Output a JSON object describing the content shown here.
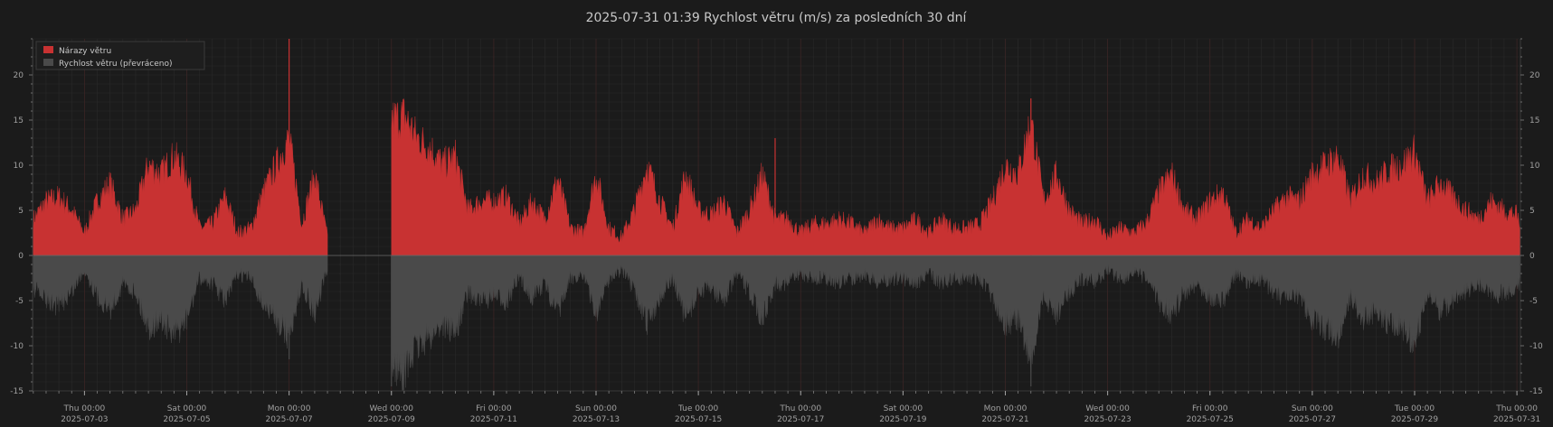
{
  "title": "2025-07-31  01:39  Rychlost větru (m/s) za posledních 30 dní",
  "colors": {
    "background": "#1b1b1b",
    "plot_background": "#1b1b1b",
    "gusts": "#c83232",
    "speed": "#4a4a4a",
    "grid_minor": "#2a2a2a",
    "grid_major_x": "#3a2424",
    "text": "#a0a0a0"
  },
  "chart_data": {
    "type": "area",
    "title": "2025-07-31  01:39  Rychlost větru (m/s) za posledních 30 dní",
    "xlabel": "",
    "ylabel": "",
    "x_range": [
      "2025-07-01T23:39",
      "2025-07-31T01:39"
    ],
    "ylim": [
      -15,
      24
    ],
    "y_ticks": [
      -15,
      -10,
      -5,
      0,
      5,
      10,
      15,
      20
    ],
    "x_ticks": [
      {
        "x": "2025-07-03T00:00",
        "day": "Thu 00:00",
        "date": "2025-07-03"
      },
      {
        "x": "2025-07-05T00:00",
        "day": "Sat 00:00",
        "date": "2025-07-05"
      },
      {
        "x": "2025-07-07T00:00",
        "day": "Mon 00:00",
        "date": "2025-07-07"
      },
      {
        "x": "2025-07-09T00:00",
        "day": "Wed 00:00",
        "date": "2025-07-09"
      },
      {
        "x": "2025-07-11T00:00",
        "day": "Fri 00:00",
        "date": "2025-07-11"
      },
      {
        "x": "2025-07-13T00:00",
        "day": "Sun 00:00",
        "date": "2025-07-13"
      },
      {
        "x": "2025-07-15T00:00",
        "day": "Tue 00:00",
        "date": "2025-07-15"
      },
      {
        "x": "2025-07-17T00:00",
        "day": "Thu 00:00",
        "date": "2025-07-17"
      },
      {
        "x": "2025-07-19T00:00",
        "day": "Sat 00:00",
        "date": "2025-07-19"
      },
      {
        "x": "2025-07-21T00:00",
        "day": "Mon 00:00",
        "date": "2025-07-21"
      },
      {
        "x": "2025-07-23T00:00",
        "day": "Wed 00:00",
        "date": "2025-07-23"
      },
      {
        "x": "2025-07-25T00:00",
        "day": "Fri 00:00",
        "date": "2025-07-25"
      },
      {
        "x": "2025-07-27T00:00",
        "day": "Sun 00:00",
        "date": "2025-07-27"
      },
      {
        "x": "2025-07-29T00:00",
        "day": "Tue 00:00",
        "date": "2025-07-29"
      },
      {
        "x": "2025-07-31T00:00",
        "day": "Thu 00:00",
        "date": "2025-07-31"
      }
    ],
    "grid": true,
    "legend_position": "top-left",
    "series": [
      {
        "name": "Nárazy větru",
        "color": "#c83232",
        "direction": "up",
        "data": [
          [
            "2025-07-02T00:00",
            4
          ],
          [
            "2025-07-02T06:00",
            6
          ],
          [
            "2025-07-02T12:00",
            6.5
          ],
          [
            "2025-07-02T18:00",
            5
          ],
          [
            "2025-07-03T00:00",
            2.5
          ],
          [
            "2025-07-03T06:00",
            6
          ],
          [
            "2025-07-03T12:00",
            8
          ],
          [
            "2025-07-03T18:00",
            4
          ],
          [
            "2025-07-04T00:00",
            5
          ],
          [
            "2025-07-04T06:00",
            10
          ],
          [
            "2025-07-04T12:00",
            9
          ],
          [
            "2025-07-04T18:00",
            11
          ],
          [
            "2025-07-05T00:00",
            9
          ],
          [
            "2025-07-05T06:00",
            3
          ],
          [
            "2025-07-05T12:00",
            3.5
          ],
          [
            "2025-07-05T18:00",
            6.5
          ],
          [
            "2025-07-06T00:00",
            2.5
          ],
          [
            "2025-07-06T06:00",
            3
          ],
          [
            "2025-07-06T12:00",
            7
          ],
          [
            "2025-07-06T18:00",
            10
          ],
          [
            "2025-07-07T00:00",
            13
          ],
          [
            "2025-07-07T06:00",
            3.5
          ],
          [
            "2025-07-07T12:00",
            9
          ],
          [
            "2025-07-07T18:00",
            2
          ],
          [
            "2025-07-09T00:00",
            15
          ],
          [
            "2025-07-09T06:00",
            15.5
          ],
          [
            "2025-07-09T12:00",
            13
          ],
          [
            "2025-07-09T18:00",
            12
          ],
          [
            "2025-07-10T00:00",
            10
          ],
          [
            "2025-07-10T06:00",
            11
          ],
          [
            "2025-07-10T12:00",
            5
          ],
          [
            "2025-07-10T18:00",
            6
          ],
          [
            "2025-07-11T00:00",
            6
          ],
          [
            "2025-07-11T06:00",
            6.5
          ],
          [
            "2025-07-11T12:00",
            3.5
          ],
          [
            "2025-07-11T18:00",
            6
          ],
          [
            "2025-07-12T00:00",
            4
          ],
          [
            "2025-07-12T06:00",
            8.5
          ],
          [
            "2025-07-12T12:00",
            3
          ],
          [
            "2025-07-12T18:00",
            2.5
          ],
          [
            "2025-07-13T00:00",
            9
          ],
          [
            "2025-07-13T06:00",
            3
          ],
          [
            "2025-07-13T12:00",
            2
          ],
          [
            "2025-07-13T18:00",
            5
          ],
          [
            "2025-07-14T00:00",
            10
          ],
          [
            "2025-07-14T06:00",
            6
          ],
          [
            "2025-07-14T12:00",
            3
          ],
          [
            "2025-07-14T18:00",
            9
          ],
          [
            "2025-07-15T00:00",
            5
          ],
          [
            "2025-07-15T06:00",
            4.5
          ],
          [
            "2025-07-15T12:00",
            6
          ],
          [
            "2025-07-15T18:00",
            2.5
          ],
          [
            "2025-07-16T00:00",
            5
          ],
          [
            "2025-07-16T06:00",
            9
          ],
          [
            "2025-07-16T12:00",
            4
          ],
          [
            "2025-07-16T18:00",
            4
          ],
          [
            "2025-07-17T00:00",
            2.5
          ],
          [
            "2025-07-17T06:00",
            3.5
          ],
          [
            "2025-07-17T12:00",
            3.5
          ],
          [
            "2025-07-17T18:00",
            4
          ],
          [
            "2025-07-18T00:00",
            3.5
          ],
          [
            "2025-07-18T06:00",
            2.5
          ],
          [
            "2025-07-18T12:00",
            4
          ],
          [
            "2025-07-18T18:00",
            3
          ],
          [
            "2025-07-19T00:00",
            3
          ],
          [
            "2025-07-19T06:00",
            4
          ],
          [
            "2025-07-19T12:00",
            2.5
          ],
          [
            "2025-07-19T18:00",
            4
          ],
          [
            "2025-07-20T00:00",
            3
          ],
          [
            "2025-07-20T06:00",
            3
          ],
          [
            "2025-07-20T12:00",
            3.5
          ],
          [
            "2025-07-20T18:00",
            6
          ],
          [
            "2025-07-21T00:00",
            10
          ],
          [
            "2025-07-21T06:00",
            9
          ],
          [
            "2025-07-21T12:00",
            15
          ],
          [
            "2025-07-21T18:00",
            6
          ],
          [
            "2025-07-22T00:00",
            9
          ],
          [
            "2025-07-22T06:00",
            5
          ],
          [
            "2025-07-22T12:00",
            3.5
          ],
          [
            "2025-07-22T18:00",
            4
          ],
          [
            "2025-07-23T00:00",
            2
          ],
          [
            "2025-07-23T06:00",
            3
          ],
          [
            "2025-07-23T12:00",
            2.5
          ],
          [
            "2025-07-23T18:00",
            3.5
          ],
          [
            "2025-07-24T00:00",
            7
          ],
          [
            "2025-07-24T06:00",
            9
          ],
          [
            "2025-07-24T12:00",
            5
          ],
          [
            "2025-07-24T18:00",
            4
          ],
          [
            "2025-07-25T00:00",
            6
          ],
          [
            "2025-07-25T06:00",
            7
          ],
          [
            "2025-07-25T12:00",
            2.5
          ],
          [
            "2025-07-25T18:00",
            4
          ],
          [
            "2025-07-26T00:00",
            3
          ],
          [
            "2025-07-26T06:00",
            5
          ],
          [
            "2025-07-26T12:00",
            6.5
          ],
          [
            "2025-07-26T18:00",
            6
          ],
          [
            "2025-07-27T00:00",
            9
          ],
          [
            "2025-07-27T06:00",
            10
          ],
          [
            "2025-07-27T12:00",
            11
          ],
          [
            "2025-07-27T18:00",
            6
          ],
          [
            "2025-07-28T00:00",
            9
          ],
          [
            "2025-07-28T06:00",
            8
          ],
          [
            "2025-07-28T12:00",
            9.5
          ],
          [
            "2025-07-28T18:00",
            10
          ],
          [
            "2025-07-29T00:00",
            11.5
          ],
          [
            "2025-07-29T06:00",
            6
          ],
          [
            "2025-07-29T12:00",
            8
          ],
          [
            "2025-07-29T18:00",
            6.5
          ],
          [
            "2025-07-30T00:00",
            5
          ],
          [
            "2025-07-30T06:00",
            4
          ],
          [
            "2025-07-30T12:00",
            6
          ],
          [
            "2025-07-30T18:00",
            5
          ],
          [
            "2025-07-31T00:00",
            4.5
          ],
          [
            "2025-07-31T01:39",
            3
          ]
        ],
        "spikes": [
          [
            "2025-07-07T00:00",
            24
          ],
          [
            "2025-07-21T12:00",
            17.4
          ],
          [
            "2025-07-16T12:00",
            13
          ]
        ]
      },
      {
        "name": "Rychlost větru (převráceno)",
        "color": "#4a4a4a",
        "direction": "down",
        "data": [
          [
            "2025-07-02T00:00",
            -3.5
          ],
          [
            "2025-07-02T06:00",
            -5
          ],
          [
            "2025-07-02T12:00",
            -5.5
          ],
          [
            "2025-07-02T18:00",
            -4
          ],
          [
            "2025-07-03T00:00",
            -1.5
          ],
          [
            "2025-07-03T06:00",
            -4.5
          ],
          [
            "2025-07-03T12:00",
            -6
          ],
          [
            "2025-07-03T18:00",
            -3
          ],
          [
            "2025-07-04T00:00",
            -4
          ],
          [
            "2025-07-04T06:00",
            -8
          ],
          [
            "2025-07-04T12:00",
            -7
          ],
          [
            "2025-07-04T18:00",
            -9
          ],
          [
            "2025-07-05T00:00",
            -7
          ],
          [
            "2025-07-05T06:00",
            -2.5
          ],
          [
            "2025-07-05T12:00",
            -3
          ],
          [
            "2025-07-05T18:00",
            -5
          ],
          [
            "2025-07-06T00:00",
            -2
          ],
          [
            "2025-07-06T06:00",
            -2.5
          ],
          [
            "2025-07-06T12:00",
            -5.5
          ],
          [
            "2025-07-06T18:00",
            -7
          ],
          [
            "2025-07-07T00:00",
            -9
          ],
          [
            "2025-07-07T06:00",
            -3
          ],
          [
            "2025-07-07T12:00",
            -6.5
          ],
          [
            "2025-07-07T18:00",
            -1.5
          ],
          [
            "2025-07-09T00:00",
            -12
          ],
          [
            "2025-07-09T06:00",
            -13
          ],
          [
            "2025-07-09T12:00",
            -10
          ],
          [
            "2025-07-09T18:00",
            -9
          ],
          [
            "2025-07-10T00:00",
            -7.5
          ],
          [
            "2025-07-10T06:00",
            -8.5
          ],
          [
            "2025-07-10T12:00",
            -4
          ],
          [
            "2025-07-10T18:00",
            -5
          ],
          [
            "2025-07-11T00:00",
            -4.5
          ],
          [
            "2025-07-11T06:00",
            -5
          ],
          [
            "2025-07-11T12:00",
            -2.5
          ],
          [
            "2025-07-11T18:00",
            -4.5
          ],
          [
            "2025-07-12T00:00",
            -3
          ],
          [
            "2025-07-12T06:00",
            -6.5
          ],
          [
            "2025-07-12T12:00",
            -2.5
          ],
          [
            "2025-07-12T18:00",
            -2
          ],
          [
            "2025-07-13T00:00",
            -6.5
          ],
          [
            "2025-07-13T06:00",
            -2.5
          ],
          [
            "2025-07-13T12:00",
            -1.5
          ],
          [
            "2025-07-13T18:00",
            -4
          ],
          [
            "2025-07-14T00:00",
            -7.5
          ],
          [
            "2025-07-14T06:00",
            -4.5
          ],
          [
            "2025-07-14T12:00",
            -2.5
          ],
          [
            "2025-07-14T18:00",
            -7
          ],
          [
            "2025-07-15T00:00",
            -4
          ],
          [
            "2025-07-15T06:00",
            -3.5
          ],
          [
            "2025-07-15T12:00",
            -5
          ],
          [
            "2025-07-15T18:00",
            -2
          ],
          [
            "2025-07-16T00:00",
            -4
          ],
          [
            "2025-07-16T06:00",
            -7
          ],
          [
            "2025-07-16T12:00",
            -3
          ],
          [
            "2025-07-16T18:00",
            -3
          ],
          [
            "2025-07-17T00:00",
            -2
          ],
          [
            "2025-07-17T06:00",
            -2.5
          ],
          [
            "2025-07-17T12:00",
            -2.5
          ],
          [
            "2025-07-17T18:00",
            -3
          ],
          [
            "2025-07-18T00:00",
            -2.5
          ],
          [
            "2025-07-18T06:00",
            -2
          ],
          [
            "2025-07-18T12:00",
            -3
          ],
          [
            "2025-07-18T18:00",
            -2.5
          ],
          [
            "2025-07-19T00:00",
            -2.5
          ],
          [
            "2025-07-19T06:00",
            -3
          ],
          [
            "2025-07-19T12:00",
            -2
          ],
          [
            "2025-07-19T18:00",
            -3
          ],
          [
            "2025-07-20T00:00",
            -2.5
          ],
          [
            "2025-07-20T06:00",
            -2.5
          ],
          [
            "2025-07-20T12:00",
            -2.5
          ],
          [
            "2025-07-20T18:00",
            -4.5
          ],
          [
            "2025-07-21T00:00",
            -7.5
          ],
          [
            "2025-07-21T06:00",
            -7
          ],
          [
            "2025-07-21T12:00",
            -12
          ],
          [
            "2025-07-21T18:00",
            -4.5
          ],
          [
            "2025-07-22T00:00",
            -6.5
          ],
          [
            "2025-07-22T06:00",
            -4
          ],
          [
            "2025-07-22T12:00",
            -2.5
          ],
          [
            "2025-07-22T18:00",
            -3
          ],
          [
            "2025-07-23T00:00",
            -1.5
          ],
          [
            "2025-07-23T06:00",
            -2.5
          ],
          [
            "2025-07-23T12:00",
            -2
          ],
          [
            "2025-07-23T18:00",
            -2.5
          ],
          [
            "2025-07-24T00:00",
            -5
          ],
          [
            "2025-07-24T06:00",
            -6.5
          ],
          [
            "2025-07-24T12:00",
            -4
          ],
          [
            "2025-07-24T18:00",
            -3
          ],
          [
            "2025-07-25T00:00",
            -4.5
          ],
          [
            "2025-07-25T06:00",
            -5
          ],
          [
            "2025-07-25T12:00",
            -2
          ],
          [
            "2025-07-25T18:00",
            -3
          ],
          [
            "2025-07-26T00:00",
            -2.5
          ],
          [
            "2025-07-26T06:00",
            -4
          ],
          [
            "2025-07-26T12:00",
            -5
          ],
          [
            "2025-07-26T18:00",
            -4.5
          ],
          [
            "2025-07-27T00:00",
            -7
          ],
          [
            "2025-07-27T06:00",
            -8
          ],
          [
            "2025-07-27T12:00",
            -9
          ],
          [
            "2025-07-27T18:00",
            -4.5
          ],
          [
            "2025-07-28T00:00",
            -7
          ],
          [
            "2025-07-28T06:00",
            -6
          ],
          [
            "2025-07-28T12:00",
            -7.5
          ],
          [
            "2025-07-28T18:00",
            -8
          ],
          [
            "2025-07-29T00:00",
            -9.5
          ],
          [
            "2025-07-29T06:00",
            -4.5
          ],
          [
            "2025-07-29T12:00",
            -6
          ],
          [
            "2025-07-29T18:00",
            -5
          ],
          [
            "2025-07-30T00:00",
            -4
          ],
          [
            "2025-07-30T06:00",
            -3
          ],
          [
            "2025-07-30T12:00",
            -4.5
          ],
          [
            "2025-07-30T18:00",
            -4
          ],
          [
            "2025-07-31T00:00",
            -3.5
          ],
          [
            "2025-07-31T01:39",
            -2.5
          ]
        ],
        "spikes": [
          [
            "2025-07-07T00:00",
            -11.5
          ],
          [
            "2025-07-09T00:00",
            -14.5
          ],
          [
            "2025-07-21T12:00",
            -14.5
          ]
        ]
      }
    ]
  }
}
